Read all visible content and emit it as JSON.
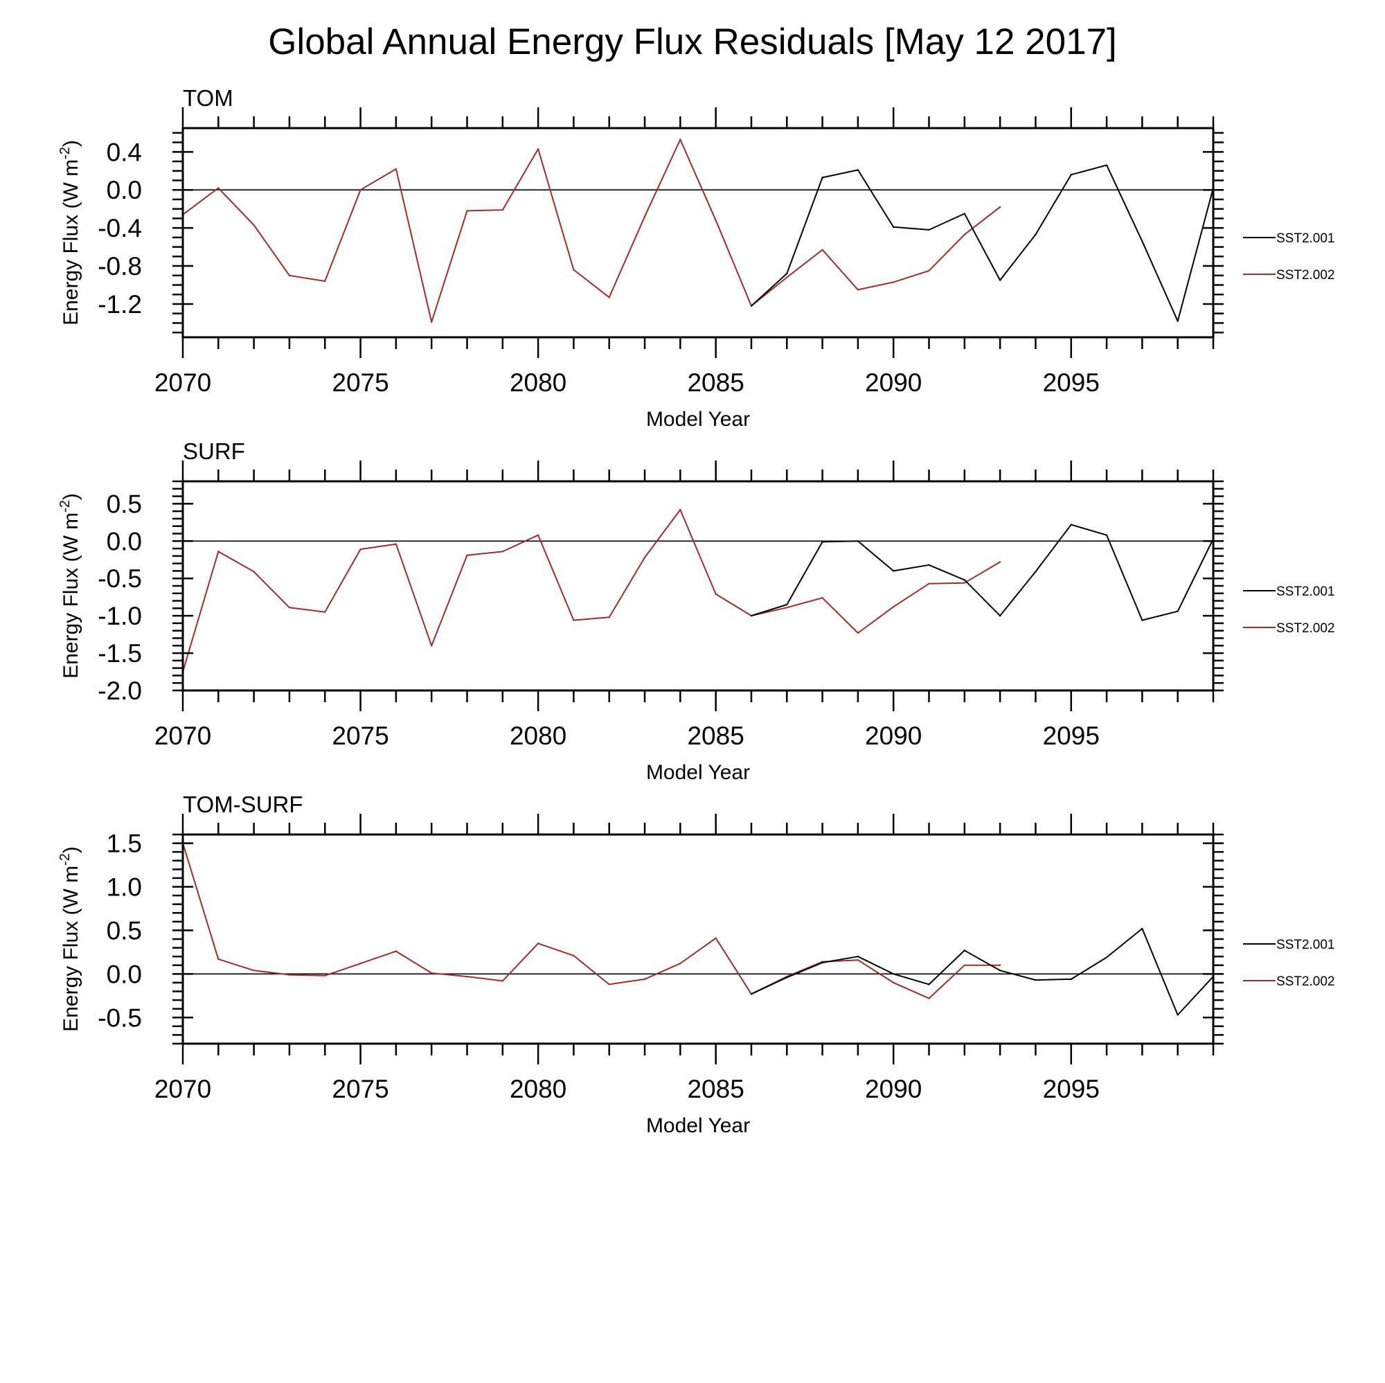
{
  "title": "Global Annual Energy Flux Residuals [May 12 2017]",
  "colors": {
    "SST2.002": "#a52a2a",
    "SST2.001": "#000000",
    "axis": "#000000"
  },
  "chart_data": [
    {
      "type": "line",
      "title": "TOM",
      "xlabel": "Model Year",
      "ylabel": "Energy Flux (W m",
      "ylabel_sup": "-2",
      "ylabel_end": ")",
      "xlim": [
        2070,
        2099
      ],
      "ylim": [
        -1.55,
        0.65
      ],
      "xticks": [
        2070,
        2075,
        2080,
        2085,
        2090,
        2095
      ],
      "yticks": [
        0.4,
        0.0,
        -0.4,
        -0.8,
        -1.2
      ],
      "ytick_labels": [
        "0.4",
        "0.0",
        "-0.4",
        "-0.8",
        "-1.2"
      ],
      "minor_y_step": 0.1,
      "reference_line": 0,
      "legend_position": "right",
      "series": [
        {
          "name": "SST2.002",
          "color": "#a52a2a",
          "x": [
            2070,
            2071,
            2072,
            2073,
            2074,
            2075,
            2076,
            2077,
            2078,
            2079,
            2080,
            2081,
            2082,
            2083,
            2084,
            2085,
            2086,
            2087,
            2088,
            2089,
            2090,
            2091,
            2092,
            2093
          ],
          "values": [
            -0.26,
            0.02,
            -0.37,
            -0.9,
            -0.96,
            0.0,
            0.22,
            -1.39,
            -0.22,
            -0.21,
            0.43,
            -0.84,
            -1.13,
            -0.28,
            0.53,
            -0.32,
            -1.22,
            -0.92,
            -0.63,
            -1.05,
            -0.97,
            -0.85,
            -0.47,
            -0.18
          ]
        },
        {
          "name": "SST2.001",
          "color": "#000000",
          "x": [
            2086,
            2087,
            2088,
            2089,
            2090,
            2091,
            2092,
            2093,
            2094,
            2095,
            2096,
            2097,
            2098,
            2099
          ],
          "values": [
            -1.22,
            -0.88,
            0.13,
            0.21,
            -0.39,
            -0.42,
            -0.25,
            -0.95,
            -0.47,
            0.16,
            0.26,
            -0.54,
            -1.38,
            0.02
          ]
        }
      ]
    },
    {
      "type": "line",
      "title": "SURF",
      "xlabel": "Model Year",
      "ylabel": "Energy Flux (W m",
      "ylabel_sup": "-2",
      "ylabel_end": ")",
      "xlim": [
        2070,
        2099
      ],
      "ylim": [
        -2.0,
        0.8
      ],
      "xticks": [
        2070,
        2075,
        2080,
        2085,
        2090,
        2095
      ],
      "yticks": [
        0.5,
        0.0,
        -0.5,
        -1.0,
        -1.5,
        -2.0
      ],
      "ytick_labels": [
        "0.5",
        "0.0",
        "-0.5",
        "-1.0",
        "-1.5",
        "-2.0"
      ],
      "minor_y_step": 0.1,
      "reference_line": 0,
      "legend_position": "right",
      "series": [
        {
          "name": "SST2.002",
          "color": "#a52a2a",
          "x": [
            2070,
            2071,
            2072,
            2073,
            2074,
            2075,
            2076,
            2077,
            2078,
            2079,
            2080,
            2081,
            2082,
            2083,
            2084,
            2085,
            2086,
            2087,
            2088,
            2089,
            2090,
            2091,
            2092,
            2093
          ],
          "values": [
            -1.75,
            -0.14,
            -0.41,
            -0.89,
            -0.95,
            -0.11,
            -0.04,
            -1.4,
            -0.19,
            -0.14,
            0.08,
            -1.06,
            -1.02,
            -0.22,
            0.42,
            -0.71,
            -1.0,
            -0.89,
            -0.76,
            -1.23,
            -0.88,
            -0.57,
            -0.56,
            -0.28
          ]
        },
        {
          "name": "SST2.001",
          "color": "#000000",
          "x": [
            2086,
            2087,
            2088,
            2089,
            2090,
            2091,
            2092,
            2093,
            2094,
            2095,
            2096,
            2097,
            2098,
            2099
          ],
          "values": [
            -1.0,
            -0.85,
            -0.01,
            0.0,
            -0.4,
            -0.32,
            -0.52,
            -1.0,
            -0.41,
            0.22,
            0.08,
            -1.06,
            -0.94,
            0.03
          ]
        }
      ]
    },
    {
      "type": "line",
      "title": "TOM-SURF",
      "xlabel": "Model Year",
      "ylabel": "Energy Flux (W m",
      "ylabel_sup": "-2",
      "ylabel_end": ")",
      "xlim": [
        2070,
        2099
      ],
      "ylim": [
        -0.8,
        1.6
      ],
      "xticks": [
        2070,
        2075,
        2080,
        2085,
        2090,
        2095
      ],
      "yticks": [
        1.5,
        1.0,
        0.5,
        0.0,
        -0.5
      ],
      "ytick_labels": [
        "1.5",
        "1.0",
        "0.5",
        "0.0",
        "-0.5"
      ],
      "minor_y_step": 0.1,
      "reference_line": 0,
      "legend_position": "right",
      "series": [
        {
          "name": "SST2.002",
          "color": "#a52a2a",
          "x": [
            2070,
            2071,
            2072,
            2073,
            2074,
            2075,
            2076,
            2077,
            2078,
            2079,
            2080,
            2081,
            2082,
            2083,
            2084,
            2085,
            2086,
            2087,
            2088,
            2089,
            2090,
            2091,
            2092,
            2093
          ],
          "values": [
            1.5,
            0.17,
            0.04,
            -0.01,
            -0.02,
            0.12,
            0.26,
            0.01,
            -0.03,
            -0.08,
            0.35,
            0.21,
            -0.12,
            -0.06,
            0.12,
            0.41,
            -0.23,
            -0.03,
            0.14,
            0.16,
            -0.1,
            -0.28,
            0.1,
            0.1
          ]
        },
        {
          "name": "SST2.001",
          "color": "#000000",
          "x": [
            2086,
            2087,
            2088,
            2089,
            2090,
            2091,
            2092,
            2093,
            2094,
            2095,
            2096,
            2097,
            2098,
            2099
          ],
          "values": [
            -0.23,
            -0.04,
            0.13,
            0.2,
            0.0,
            -0.12,
            0.27,
            0.04,
            -0.07,
            -0.06,
            0.19,
            0.52,
            -0.47,
            -0.03
          ]
        }
      ]
    }
  ]
}
